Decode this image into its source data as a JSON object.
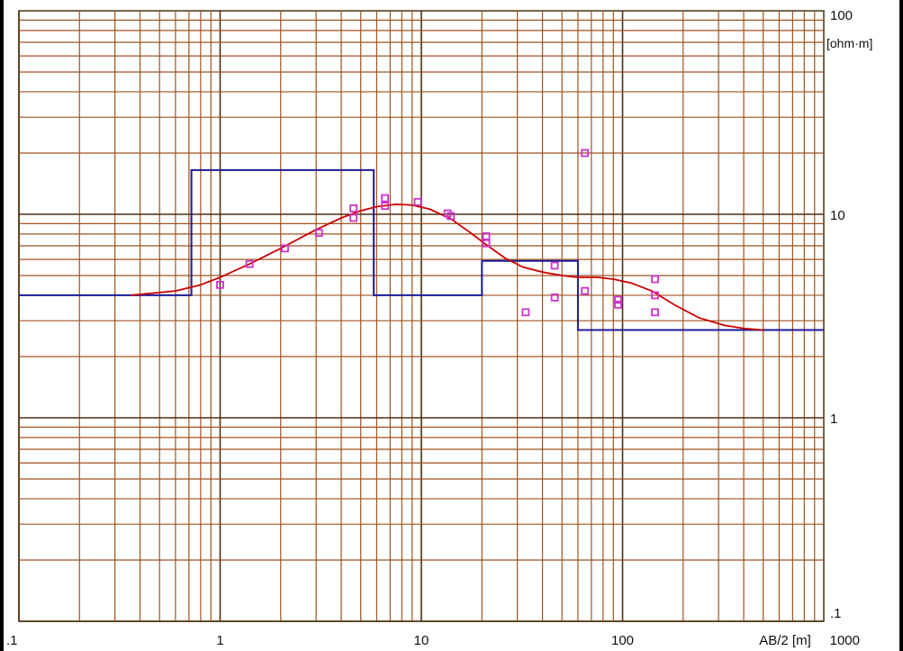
{
  "chart_data": {
    "type": "scatter",
    "x_scale": "log",
    "y_scale": "log",
    "xlim": [
      0.1,
      1000
    ],
    "ylim": [
      0.1,
      100
    ],
    "grid": true,
    "x_ticks": [
      ".1",
      "1",
      "10",
      "100",
      "1000"
    ],
    "y_ticks": [
      "100",
      "10",
      "1",
      ".1"
    ],
    "x_unit_label": "AB/2 [m]",
    "y_unit_label": "[ohm·m]",
    "colors": {
      "grid_minor": "#a0521e",
      "grid_major": "#4a3010",
      "measured": "#cc33cc",
      "model_curve": "#cc0000",
      "layer_model": "#1a1a99"
    },
    "measured_points": [
      [
        1.0,
        4.5
      ],
      [
        1.4,
        5.7
      ],
      [
        2.1,
        6.8
      ],
      [
        3.1,
        8.1
      ],
      [
        4.6,
        9.6
      ],
      [
        4.6,
        10.7
      ],
      [
        6.6,
        11.0
      ],
      [
        6.6,
        12.0
      ],
      [
        9.6,
        11.5
      ],
      [
        13.5,
        10.1
      ],
      [
        14.0,
        9.8
      ],
      [
        21.0,
        7.8
      ],
      [
        21.0,
        7.2
      ],
      [
        33.0,
        3.3
      ],
      [
        46.0,
        5.6
      ],
      [
        46.0,
        3.9
      ],
      [
        65.0,
        20.0
      ],
      [
        65.0,
        4.2
      ],
      [
        95.0,
        3.6
      ],
      [
        95.0,
        3.8
      ],
      [
        145.0,
        4.8
      ],
      [
        145.0,
        4.0
      ],
      [
        145.0,
        3.3
      ]
    ],
    "model_curve": [
      [
        0.36,
        4.0
      ],
      [
        0.6,
        4.2
      ],
      [
        0.8,
        4.5
      ],
      [
        1.0,
        4.9
      ],
      [
        1.4,
        5.7
      ],
      [
        2.0,
        6.8
      ],
      [
        3.0,
        8.4
      ],
      [
        4.0,
        9.6
      ],
      [
        5.0,
        10.4
      ],
      [
        6.0,
        10.9
      ],
      [
        7.5,
        11.2
      ],
      [
        9.0,
        11.1
      ],
      [
        11.0,
        10.6
      ],
      [
        14.0,
        9.5
      ],
      [
        17.0,
        8.3
      ],
      [
        21.0,
        7.1
      ],
      [
        26.0,
        6.1
      ],
      [
        32.0,
        5.5
      ],
      [
        40.0,
        5.2
      ],
      [
        50.0,
        5.0
      ],
      [
        60.0,
        4.9
      ],
      [
        75.0,
        4.9
      ],
      [
        90.0,
        4.8
      ],
      [
        110.0,
        4.6
      ],
      [
        140.0,
        4.2
      ],
      [
        180.0,
        3.6
      ],
      [
        240.0,
        3.1
      ],
      [
        320.0,
        2.85
      ],
      [
        400.0,
        2.75
      ],
      [
        500.0,
        2.7
      ]
    ],
    "layer_model": [
      [
        0.1,
        4.0
      ],
      [
        0.72,
        4.0
      ],
      [
        0.72,
        16.5
      ],
      [
        5.8,
        16.5
      ],
      [
        5.8,
        4.0
      ],
      [
        20.0,
        4.0
      ],
      [
        20.0,
        5.9
      ],
      [
        60.0,
        5.9
      ],
      [
        60.0,
        2.7
      ],
      [
        1000,
        2.7
      ]
    ]
  }
}
